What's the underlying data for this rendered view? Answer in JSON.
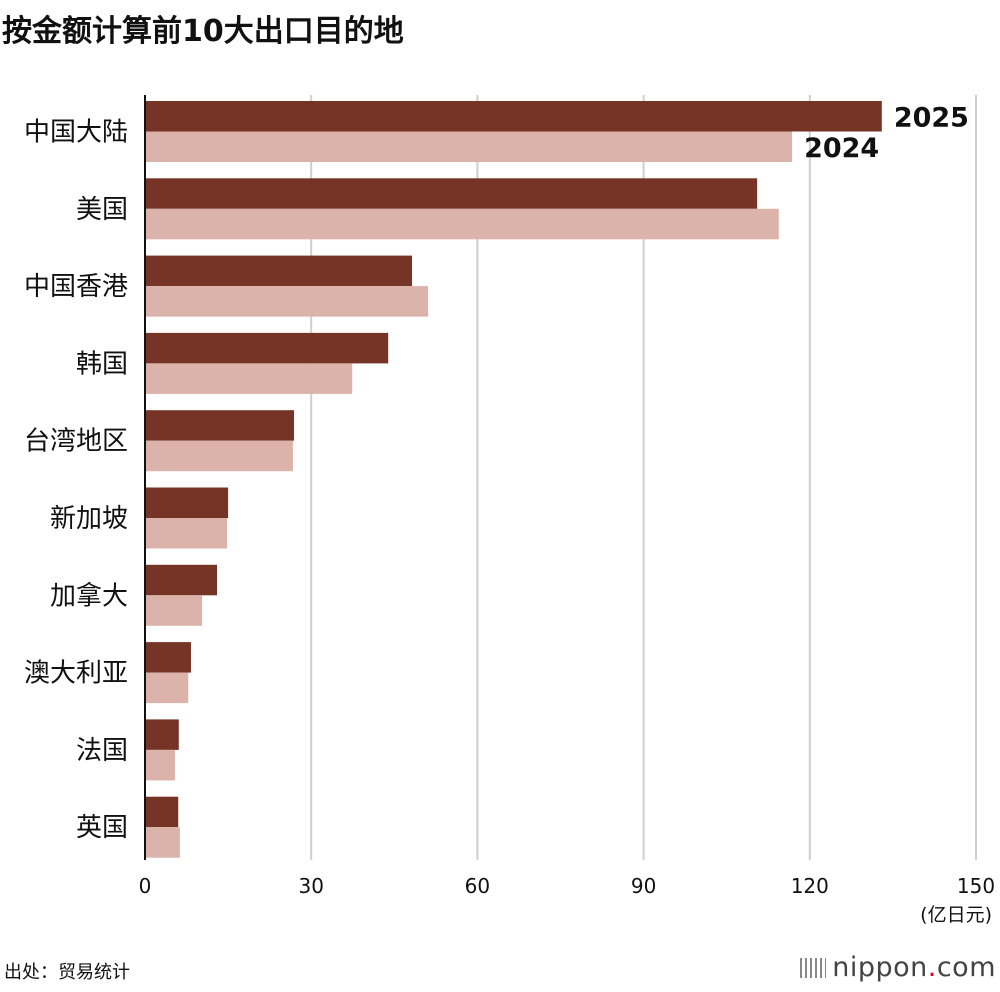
{
  "chart_data": {
    "type": "bar",
    "orientation": "horizontal",
    "title": "按金额计算前10大出口目的地",
    "categories": [
      "中国大陆",
      "美国",
      "中国香港",
      "韩国",
      "台湾地区",
      "新加坡",
      "加拿大",
      "澳大利亚",
      "法国",
      "英国"
    ],
    "series": [
      {
        "name": "2025",
        "color": "#763427",
        "values": [
          133.0,
          110.5,
          48.2,
          43.9,
          26.9,
          15.0,
          13.0,
          8.3,
          6.1,
          6.0
        ]
      },
      {
        "name": "2024",
        "color": "#dcb3aa",
        "values": [
          116.8,
          114.4,
          51.1,
          37.4,
          26.7,
          14.8,
          10.3,
          7.8,
          5.4,
          6.3
        ]
      }
    ],
    "xlim": [
      0,
      150
    ],
    "xticks": [
      0,
      30,
      60,
      90,
      120,
      150
    ],
    "xlabel": "(亿日元)",
    "grid": true,
    "legend": "inline-at-first-bars"
  },
  "footer": {
    "source": "出处：贸易统计",
    "logo_text": "nippon",
    "logo_dot": ".",
    "logo_suffix": "com"
  }
}
